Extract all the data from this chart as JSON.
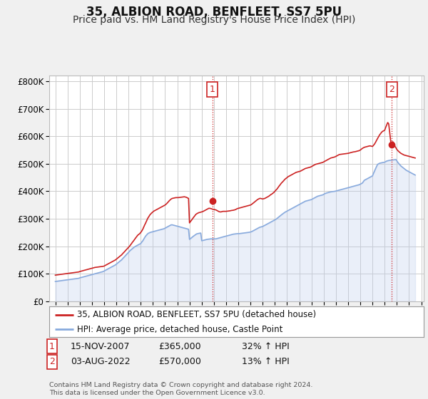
{
  "title": "35, ALBION ROAD, BENFLEET, SS7 5PU",
  "subtitle": "Price paid vs. HM Land Registry's House Price Index (HPI)",
  "title_fontsize": 12,
  "subtitle_fontsize": 10,
  "ylabel_ticks": [
    "£0",
    "£100K",
    "£200K",
    "£300K",
    "£400K",
    "£500K",
    "£600K",
    "£700K",
    "£800K"
  ],
  "ytick_values": [
    0,
    100000,
    200000,
    300000,
    400000,
    500000,
    600000,
    700000,
    800000
  ],
  "ylim": [
    0,
    820000
  ],
  "background_color": "#f0f0f0",
  "plot_bg_color": "#ffffff",
  "grid_color": "#cccccc",
  "red_line_color": "#cc2222",
  "blue_line_color": "#88aadd",
  "blue_fill_color": "#bbccee",
  "vline_color": "#cc2222",
  "marker1_x": 2007.88,
  "marker1_y": 365000,
  "marker2_x": 2022.58,
  "marker2_y": 570000,
  "annotation1_date": "15-NOV-2007",
  "annotation1_price": "£365,000",
  "annotation1_hpi": "32% ↑ HPI",
  "annotation2_date": "03-AUG-2022",
  "annotation2_price": "£570,000",
  "annotation2_hpi": "13% ↑ HPI",
  "legend_line1": "35, ALBION ROAD, BENFLEET, SS7 5PU (detached house)",
  "legend_line2": "HPI: Average price, detached house, Castle Point",
  "footnote": "Contains HM Land Registry data © Crown copyright and database right 2024.\nThis data is licensed under the Open Government Licence v3.0.",
  "red_data_years": [
    1995.0,
    1995.08,
    1995.17,
    1995.25,
    1995.33,
    1995.42,
    1995.5,
    1995.58,
    1995.67,
    1995.75,
    1995.83,
    1995.92,
    1996.0,
    1996.08,
    1996.17,
    1996.25,
    1996.33,
    1996.42,
    1996.5,
    1996.58,
    1996.67,
    1996.75,
    1996.83,
    1996.92,
    1997.0,
    1997.08,
    1997.17,
    1997.25,
    1997.33,
    1997.42,
    1997.5,
    1997.58,
    1997.67,
    1997.75,
    1997.83,
    1997.92,
    1998.0,
    1998.08,
    1998.17,
    1998.25,
    1998.33,
    1998.42,
    1998.5,
    1998.58,
    1998.67,
    1998.75,
    1998.83,
    1998.92,
    1999.0,
    1999.08,
    1999.17,
    1999.25,
    1999.33,
    1999.42,
    1999.5,
    1999.58,
    1999.67,
    1999.75,
    1999.83,
    1999.92,
    2000.0,
    2000.08,
    2000.17,
    2000.25,
    2000.33,
    2000.42,
    2000.5,
    2000.58,
    2000.67,
    2000.75,
    2000.83,
    2000.92,
    2001.0,
    2001.08,
    2001.17,
    2001.25,
    2001.33,
    2001.42,
    2001.5,
    2001.58,
    2001.67,
    2001.75,
    2001.83,
    2001.92,
    2002.0,
    2002.08,
    2002.17,
    2002.25,
    2002.33,
    2002.42,
    2002.5,
    2002.58,
    2002.67,
    2002.75,
    2002.83,
    2002.92,
    2003.0,
    2003.08,
    2003.17,
    2003.25,
    2003.33,
    2003.42,
    2003.5,
    2003.58,
    2003.67,
    2003.75,
    2003.83,
    2003.92,
    2004.0,
    2004.08,
    2004.17,
    2004.25,
    2004.33,
    2004.42,
    2004.5,
    2004.58,
    2004.67,
    2004.75,
    2004.83,
    2004.92,
    2005.0,
    2005.08,
    2005.17,
    2005.25,
    2005.33,
    2005.42,
    2005.5,
    2005.58,
    2005.67,
    2005.75,
    2005.83,
    2005.92,
    2006.0,
    2006.08,
    2006.17,
    2006.25,
    2006.33,
    2006.42,
    2006.5,
    2006.58,
    2006.67,
    2006.75,
    2006.83,
    2006.92,
    2007.0,
    2007.08,
    2007.17,
    2007.25,
    2007.33,
    2007.42,
    2007.5,
    2007.58,
    2007.67,
    2007.75,
    2007.83,
    2007.88,
    2008.0,
    2008.08,
    2008.17,
    2008.25,
    2008.33,
    2008.42,
    2008.5,
    2008.58,
    2008.67,
    2008.75,
    2008.83,
    2008.92,
    2009.0,
    2009.08,
    2009.17,
    2009.25,
    2009.33,
    2009.42,
    2009.5,
    2009.58,
    2009.67,
    2009.75,
    2009.83,
    2009.92,
    2010.0,
    2010.08,
    2010.17,
    2010.25,
    2010.33,
    2010.42,
    2010.5,
    2010.58,
    2010.67,
    2010.75,
    2010.83,
    2010.92,
    2011.0,
    2011.08,
    2011.17,
    2011.25,
    2011.33,
    2011.42,
    2011.5,
    2011.58,
    2011.67,
    2011.75,
    2011.83,
    2011.92,
    2012.0,
    2012.08,
    2012.17,
    2012.25,
    2012.33,
    2012.42,
    2012.5,
    2012.58,
    2012.67,
    2012.75,
    2012.83,
    2012.92,
    2013.0,
    2013.08,
    2013.17,
    2013.25,
    2013.33,
    2013.42,
    2013.5,
    2013.58,
    2013.67,
    2013.75,
    2013.83,
    2013.92,
    2014.0,
    2014.08,
    2014.17,
    2014.25,
    2014.33,
    2014.42,
    2014.5,
    2014.58,
    2014.67,
    2014.75,
    2014.83,
    2014.92,
    2015.0,
    2015.08,
    2015.17,
    2015.25,
    2015.33,
    2015.42,
    2015.5,
    2015.58,
    2015.67,
    2015.75,
    2015.83,
    2015.92,
    2016.0,
    2016.08,
    2016.17,
    2016.25,
    2016.33,
    2016.42,
    2016.5,
    2016.58,
    2016.67,
    2016.75,
    2016.83,
    2016.92,
    2017.0,
    2017.08,
    2017.17,
    2017.25,
    2017.33,
    2017.42,
    2017.5,
    2017.58,
    2017.67,
    2017.75,
    2017.83,
    2017.92,
    2018.0,
    2018.08,
    2018.17,
    2018.25,
    2018.33,
    2018.42,
    2018.5,
    2018.58,
    2018.67,
    2018.75,
    2018.83,
    2018.92,
    2019.0,
    2019.08,
    2019.17,
    2019.25,
    2019.33,
    2019.42,
    2019.5,
    2019.58,
    2019.67,
    2019.75,
    2019.83,
    2019.92,
    2020.0,
    2020.08,
    2020.17,
    2020.25,
    2020.33,
    2020.42,
    2020.5,
    2020.58,
    2020.67,
    2020.75,
    2020.83,
    2020.92,
    2021.0,
    2021.08,
    2021.17,
    2021.25,
    2021.33,
    2021.42,
    2021.5,
    2021.58,
    2021.67,
    2021.75,
    2021.83,
    2021.92,
    2022.0,
    2022.08,
    2022.17,
    2022.25,
    2022.33,
    2022.42,
    2022.5,
    2022.58,
    2022.67,
    2022.75,
    2022.83,
    2022.92,
    2023.0,
    2023.08,
    2023.17,
    2023.25,
    2023.33,
    2023.42,
    2023.5,
    2023.58,
    2023.67,
    2023.75,
    2023.83,
    2023.92,
    2024.0,
    2024.08,
    2024.17,
    2024.25,
    2024.33,
    2024.42,
    2024.5
  ],
  "red_data_values": [
    95000,
    95500,
    96000,
    96500,
    97000,
    97500,
    98000,
    98500,
    99000,
    99500,
    100000,
    100500,
    101000,
    101500,
    102000,
    102500,
    103000,
    103500,
    104000,
    104500,
    105000,
    105500,
    106000,
    106500,
    108000,
    109000,
    110000,
    111000,
    112000,
    113000,
    114000,
    115000,
    116000,
    117000,
    118000,
    119000,
    120000,
    121000,
    122000,
    123000,
    123500,
    124000,
    124500,
    125000,
    125500,
    126000,
    126500,
    127000,
    128000,
    130000,
    132000,
    134000,
    136000,
    138000,
    140000,
    142000,
    144000,
    146000,
    148000,
    150000,
    153000,
    156000,
    159000,
    162000,
    165000,
    168000,
    172000,
    176000,
    180000,
    184000,
    188000,
    192000,
    196000,
    200000,
    205000,
    210000,
    215000,
    220000,
    225000,
    230000,
    235000,
    240000,
    243000,
    246000,
    250000,
    255000,
    262000,
    270000,
    278000,
    286000,
    294000,
    302000,
    308000,
    314000,
    318000,
    322000,
    325000,
    328000,
    330000,
    332000,
    334000,
    336000,
    338000,
    340000,
    342000,
    344000,
    346000,
    348000,
    350000,
    353000,
    357000,
    361000,
    365000,
    369000,
    372000,
    374000,
    375000,
    376000,
    376500,
    377000,
    377000,
    377000,
    377500,
    378000,
    378500,
    379000,
    379500,
    380000,
    379000,
    378000,
    376000,
    374000,
    285000,
    290000,
    295000,
    300000,
    305000,
    310000,
    315000,
    318000,
    320000,
    322000,
    323000,
    324000,
    325000,
    326000,
    328000,
    330000,
    332000,
    334000,
    336000,
    338000,
    338000,
    337000,
    336000,
    335000,
    334000,
    333000,
    332000,
    330000,
    328000,
    326000,
    325000,
    325000,
    326000,
    327000,
    327000,
    327000,
    327000,
    327500,
    328000,
    328500,
    329000,
    330000,
    330500,
    331000,
    332000,
    333000,
    335000,
    337000,
    338000,
    339000,
    340000,
    341000,
    342000,
    343000,
    344000,
    345000,
    346000,
    347000,
    348000,
    349000,
    350000,
    352000,
    355000,
    358000,
    361000,
    364000,
    367000,
    370000,
    372000,
    374000,
    374000,
    373000,
    372000,
    373000,
    374000,
    376000,
    378000,
    380000,
    382000,
    385000,
    388000,
    390000,
    393000,
    396000,
    400000,
    404000,
    408000,
    413000,
    418000,
    423000,
    428000,
    432000,
    436000,
    440000,
    444000,
    447000,
    450000,
    453000,
    455000,
    457000,
    459000,
    461000,
    463000,
    465000,
    467000,
    469000,
    470000,
    471000,
    472000,
    473000,
    475000,
    477000,
    479000,
    481000,
    483000,
    484000,
    485000,
    486000,
    487000,
    488000,
    490000,
    492000,
    494000,
    496000,
    498000,
    499000,
    500000,
    501000,
    502000,
    503000,
    504000,
    505000,
    507000,
    509000,
    511000,
    513000,
    515000,
    517000,
    519000,
    521000,
    522000,
    523000,
    524000,
    525000,
    527000,
    529000,
    531000,
    533000,
    534000,
    534500,
    535000,
    535500,
    536000,
    536500,
    537000,
    537500,
    538000,
    539000,
    540000,
    541000,
    542000,
    543000,
    543500,
    544000,
    545000,
    546000,
    547000,
    548000,
    550000,
    553000,
    556000,
    558000,
    560000,
    561000,
    562000,
    563000,
    564000,
    565000,
    565000,
    564000,
    563000,
    567000,
    572000,
    578000,
    585000,
    592000,
    598000,
    605000,
    610000,
    615000,
    618000,
    620000,
    622000,
    632000,
    642000,
    650000,
    645000,
    610000,
    580000,
    570000,
    580000,
    572000,
    565000,
    558000,
    552000,
    548000,
    544000,
    541000,
    538000,
    536000,
    534000,
    532000,
    531000,
    530000,
    529000,
    528000,
    527000,
    526000,
    525000,
    524000,
    523000,
    522000,
    521000
  ],
  "blue_data_years": [
    1995.0,
    1995.08,
    1995.17,
    1995.25,
    1995.33,
    1995.42,
    1995.5,
    1995.58,
    1995.67,
    1995.75,
    1995.83,
    1995.92,
    1996.0,
    1996.08,
    1996.17,
    1996.25,
    1996.33,
    1996.42,
    1996.5,
    1996.58,
    1996.67,
    1996.75,
    1996.83,
    1996.92,
    1997.0,
    1997.08,
    1997.17,
    1997.25,
    1997.33,
    1997.42,
    1997.5,
    1997.58,
    1997.67,
    1997.75,
    1997.83,
    1997.92,
    1998.0,
    1998.08,
    1998.17,
    1998.25,
    1998.33,
    1998.42,
    1998.5,
    1998.58,
    1998.67,
    1998.75,
    1998.83,
    1998.92,
    1999.0,
    1999.08,
    1999.17,
    1999.25,
    1999.33,
    1999.42,
    1999.5,
    1999.58,
    1999.67,
    1999.75,
    1999.83,
    1999.92,
    2000.0,
    2000.08,
    2000.17,
    2000.25,
    2000.33,
    2000.42,
    2000.5,
    2000.58,
    2000.67,
    2000.75,
    2000.83,
    2000.92,
    2001.0,
    2001.08,
    2001.17,
    2001.25,
    2001.33,
    2001.42,
    2001.5,
    2001.58,
    2001.67,
    2001.75,
    2001.83,
    2001.92,
    2002.0,
    2002.08,
    2002.17,
    2002.25,
    2002.33,
    2002.42,
    2002.5,
    2002.58,
    2002.67,
    2002.75,
    2002.83,
    2002.92,
    2003.0,
    2003.08,
    2003.17,
    2003.25,
    2003.33,
    2003.42,
    2003.5,
    2003.58,
    2003.67,
    2003.75,
    2003.83,
    2003.92,
    2004.0,
    2004.08,
    2004.17,
    2004.25,
    2004.33,
    2004.42,
    2004.5,
    2004.58,
    2004.67,
    2004.75,
    2004.83,
    2004.92,
    2005.0,
    2005.08,
    2005.17,
    2005.25,
    2005.33,
    2005.42,
    2005.5,
    2005.58,
    2005.67,
    2005.75,
    2005.83,
    2005.92,
    2006.0,
    2006.08,
    2006.17,
    2006.25,
    2006.33,
    2006.42,
    2006.5,
    2006.58,
    2006.67,
    2006.75,
    2006.83,
    2006.92,
    2007.0,
    2007.08,
    2007.17,
    2007.25,
    2007.33,
    2007.42,
    2007.5,
    2007.58,
    2007.67,
    2007.75,
    2007.83,
    2007.92,
    2008.0,
    2008.08,
    2008.17,
    2008.25,
    2008.33,
    2008.42,
    2008.5,
    2008.58,
    2008.67,
    2008.75,
    2008.83,
    2008.92,
    2009.0,
    2009.08,
    2009.17,
    2009.25,
    2009.33,
    2009.42,
    2009.5,
    2009.58,
    2009.67,
    2009.75,
    2009.83,
    2009.92,
    2010.0,
    2010.08,
    2010.17,
    2010.25,
    2010.33,
    2010.42,
    2010.5,
    2010.58,
    2010.67,
    2010.75,
    2010.83,
    2010.92,
    2011.0,
    2011.08,
    2011.17,
    2011.25,
    2011.33,
    2011.42,
    2011.5,
    2011.58,
    2011.67,
    2011.75,
    2011.83,
    2011.92,
    2012.0,
    2012.08,
    2012.17,
    2012.25,
    2012.33,
    2012.42,
    2012.5,
    2012.58,
    2012.67,
    2012.75,
    2012.83,
    2012.92,
    2013.0,
    2013.08,
    2013.17,
    2013.25,
    2013.33,
    2013.42,
    2013.5,
    2013.58,
    2013.67,
    2013.75,
    2013.83,
    2013.92,
    2014.0,
    2014.08,
    2014.17,
    2014.25,
    2014.33,
    2014.42,
    2014.5,
    2014.58,
    2014.67,
    2014.75,
    2014.83,
    2014.92,
    2015.0,
    2015.08,
    2015.17,
    2015.25,
    2015.33,
    2015.42,
    2015.5,
    2015.58,
    2015.67,
    2015.75,
    2015.83,
    2015.92,
    2016.0,
    2016.08,
    2016.17,
    2016.25,
    2016.33,
    2016.42,
    2016.5,
    2016.58,
    2016.67,
    2016.75,
    2016.83,
    2016.92,
    2017.0,
    2017.08,
    2017.17,
    2017.25,
    2017.33,
    2017.42,
    2017.5,
    2017.58,
    2017.67,
    2017.75,
    2017.83,
    2017.92,
    2018.0,
    2018.08,
    2018.17,
    2018.25,
    2018.33,
    2018.42,
    2018.5,
    2018.58,
    2018.67,
    2018.75,
    2018.83,
    2018.92,
    2019.0,
    2019.08,
    2019.17,
    2019.25,
    2019.33,
    2019.42,
    2019.5,
    2019.58,
    2019.67,
    2019.75,
    2019.83,
    2019.92,
    2020.0,
    2020.08,
    2020.17,
    2020.25,
    2020.33,
    2020.42,
    2020.5,
    2020.58,
    2020.67,
    2020.75,
    2020.83,
    2020.92,
    2021.0,
    2021.08,
    2021.17,
    2021.25,
    2021.33,
    2021.42,
    2021.5,
    2021.58,
    2021.67,
    2021.75,
    2021.83,
    2021.92,
    2022.0,
    2022.08,
    2022.17,
    2022.25,
    2022.33,
    2022.42,
    2022.5,
    2022.58,
    2022.67,
    2022.75,
    2022.83,
    2022.92,
    2023.0,
    2023.08,
    2023.17,
    2023.25,
    2023.33,
    2023.42,
    2023.5,
    2023.58,
    2023.67,
    2023.75,
    2023.83,
    2023.92,
    2024.0,
    2024.08,
    2024.17,
    2024.25,
    2024.33,
    2024.42,
    2024.5
  ],
  "blue_data_values": [
    72000,
    72500,
    73000,
    73500,
    74000,
    74500,
    75000,
    75500,
    76000,
    76500,
    77000,
    77500,
    78000,
    78500,
    79000,
    79500,
    80000,
    80500,
    81000,
    81500,
    82000,
    82500,
    83000,
    83500,
    85000,
    86000,
    87000,
    88000,
    89000,
    90000,
    91000,
    92000,
    93000,
    94000,
    95000,
    96000,
    97000,
    98000,
    99000,
    100000,
    101000,
    102000,
    103000,
    104000,
    105000,
    106000,
    107000,
    108000,
    110000,
    112000,
    114000,
    116000,
    118000,
    120000,
    122000,
    124000,
    126000,
    128000,
    130000,
    132000,
    135000,
    138000,
    141000,
    144000,
    147000,
    150000,
    154000,
    158000,
    162000,
    166000,
    170000,
    174000,
    178000,
    182000,
    186000,
    189000,
    192000,
    195000,
    198000,
    200000,
    202000,
    204000,
    206000,
    208000,
    210000,
    215000,
    220000,
    226000,
    232000,
    238000,
    242000,
    246000,
    248000,
    250000,
    251000,
    252000,
    253000,
    254000,
    255000,
    256000,
    257000,
    258000,
    259000,
    260000,
    261000,
    262000,
    263000,
    264000,
    266000,
    268000,
    270000,
    272000,
    274000,
    276000,
    278000,
    278000,
    277000,
    276000,
    275000,
    274000,
    273000,
    272000,
    271000,
    270000,
    269000,
    268000,
    267000,
    266000,
    265000,
    264000,
    263000,
    262000,
    225000,
    228000,
    231000,
    234000,
    237000,
    240000,
    243000,
    245000,
    246000,
    247000,
    247500,
    248000,
    220000,
    221000,
    222000,
    223000,
    224000,
    225000,
    225500,
    226000,
    226500,
    227000,
    227000,
    227000,
    227000,
    227000,
    227000,
    228000,
    229000,
    230000,
    231000,
    232000,
    233000,
    234000,
    235000,
    236000,
    237000,
    238000,
    239000,
    240000,
    241000,
    242000,
    243000,
    244000,
    244500,
    245000,
    245500,
    246000,
    246000,
    246000,
    246500,
    247000,
    247500,
    248000,
    248500,
    249000,
    249500,
    250000,
    250500,
    251000,
    252000,
    253000,
    255000,
    257000,
    259000,
    261000,
    263000,
    265000,
    267000,
    269000,
    270000,
    271000,
    272000,
    274000,
    276000,
    278000,
    280000,
    282000,
    284000,
    286000,
    288000,
    290000,
    292000,
    294000,
    296000,
    298000,
    301000,
    304000,
    307000,
    310000,
    313000,
    316000,
    319000,
    322000,
    324000,
    326000,
    328000,
    330000,
    332000,
    334000,
    336000,
    338000,
    340000,
    342000,
    344000,
    346000,
    348000,
    350000,
    352000,
    354000,
    356000,
    358000,
    360000,
    362000,
    364000,
    365000,
    366000,
    367000,
    368000,
    369000,
    370000,
    372000,
    374000,
    376000,
    378000,
    380000,
    382000,
    383000,
    384000,
    385000,
    386000,
    387000,
    389000,
    391000,
    393000,
    394000,
    395000,
    396000,
    397000,
    398000,
    398500,
    399000,
    399500,
    400000,
    401000,
    402000,
    403000,
    404000,
    405000,
    406000,
    407000,
    408000,
    409000,
    410000,
    411000,
    412000,
    413000,
    414000,
    415000,
    416000,
    417000,
    418000,
    419000,
    420000,
    421000,
    422000,
    423000,
    424000,
    426000,
    428000,
    430000,
    435000,
    440000,
    442000,
    444000,
    446000,
    448000,
    450000,
    452000,
    454000,
    456000,
    465000,
    474000,
    482000,
    490000,
    498000,
    500000,
    502000,
    503000,
    504000,
    504500,
    505000,
    506000,
    508000,
    510000,
    511000,
    512000,
    512500,
    513000,
    513500,
    514000,
    514500,
    515000,
    515500,
    510000,
    505000,
    500000,
    496000,
    492000,
    489000,
    486000,
    483000,
    480000,
    477000,
    475000,
    473000,
    471000,
    469000,
    467000,
    465000,
    463000,
    461000,
    459000
  ],
  "xlim": [
    1994.5,
    2025.2
  ],
  "xtick_positions": [
    1995,
    1996,
    1997,
    1998,
    1999,
    2000,
    2001,
    2002,
    2003,
    2004,
    2005,
    2006,
    2007,
    2008,
    2009,
    2010,
    2011,
    2012,
    2013,
    2014,
    2015,
    2016,
    2017,
    2018,
    2019,
    2020,
    2021,
    2022,
    2023,
    2024,
    2025
  ]
}
